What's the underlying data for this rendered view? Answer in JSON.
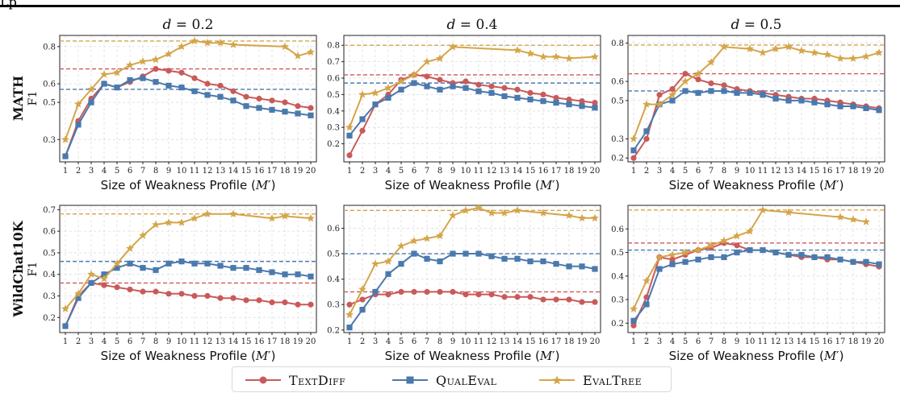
{
  "header_fragment": "Lp",
  "legend": [
    {
      "name": "TextDiff",
      "color": "#c95a5a",
      "marker": "circle"
    },
    {
      "name": "QualEval",
      "color": "#4a79ad",
      "marker": "square"
    },
    {
      "name": "EvalTree",
      "color": "#d4a54a",
      "marker": "star"
    }
  ],
  "row_labels": [
    {
      "title": "MATH",
      "sub": "F1"
    },
    {
      "title": "WildChat10K",
      "sub": "F1"
    }
  ],
  "chart_data": [
    {
      "type": "line",
      "title": "d = 0.2",
      "title_d": "d",
      "title_val": "0.2",
      "xlabel": "Size of Weakness Profile (M′)",
      "xlabel_main": "Size of Weakness Profile (",
      "xlabel_var": "M",
      "xlabel_tail": "′)",
      "x": [
        1,
        2,
        3,
        4,
        5,
        6,
        7,
        8,
        9,
        10,
        11,
        12,
        13,
        14,
        15,
        16,
        17,
        18,
        19,
        20
      ],
      "ylim": [
        0.18,
        0.86
      ],
      "yticks": [
        0.3,
        0.5,
        0.6,
        0.8
      ],
      "grid": true,
      "baselines": {
        "TextDiff": 0.68,
        "QualEval": 0.57,
        "EvalTree": 0.83
      },
      "series": [
        {
          "name": "TextDiff",
          "values": [
            0.21,
            0.4,
            0.52,
            0.6,
            0.58,
            0.61,
            0.64,
            0.68,
            0.67,
            0.66,
            0.63,
            0.6,
            0.59,
            0.56,
            0.53,
            0.52,
            0.51,
            0.5,
            0.48,
            0.47
          ]
        },
        {
          "name": "QualEval",
          "values": [
            0.21,
            0.38,
            0.5,
            0.6,
            0.58,
            0.62,
            0.63,
            0.61,
            0.59,
            0.58,
            0.56,
            0.54,
            0.53,
            0.51,
            0.48,
            0.47,
            0.46,
            0.45,
            0.44,
            0.43
          ]
        },
        {
          "name": "EvalTree",
          "values": [
            0.3,
            0.49,
            0.57,
            0.65,
            0.66,
            0.7,
            0.72,
            0.73,
            0.76,
            0.8,
            0.83,
            0.82,
            0.82,
            0.81,
            null,
            null,
            null,
            0.8,
            0.75,
            0.77
          ]
        }
      ]
    },
    {
      "type": "line",
      "title": "d = 0.4",
      "title_d": "d",
      "title_val": "0.4",
      "xlabel": "Size of Weakness Profile (M′)",
      "xlabel_main": "Size of Weakness Profile (",
      "xlabel_var": "M",
      "xlabel_tail": "′)",
      "x": [
        1,
        2,
        3,
        4,
        5,
        6,
        7,
        8,
        9,
        10,
        11,
        12,
        13,
        14,
        15,
        16,
        17,
        18,
        19,
        20
      ],
      "ylim": [
        0.09,
        0.86
      ],
      "yticks": [
        0.2,
        0.3,
        0.4,
        0.5,
        0.6,
        0.7,
        0.8
      ],
      "grid": true,
      "baselines": {
        "TextDiff": 0.62,
        "QualEval": 0.57,
        "EvalTree": 0.8
      },
      "series": [
        {
          "name": "TextDiff",
          "values": [
            0.13,
            0.28,
            0.44,
            0.5,
            0.59,
            0.62,
            0.61,
            0.59,
            0.57,
            0.58,
            0.56,
            0.55,
            0.54,
            0.53,
            0.51,
            0.5,
            0.48,
            0.47,
            0.46,
            0.45
          ]
        },
        {
          "name": "QualEval",
          "values": [
            0.25,
            0.35,
            0.44,
            0.48,
            0.53,
            0.57,
            0.55,
            0.53,
            0.55,
            0.54,
            0.52,
            0.51,
            0.49,
            0.48,
            0.47,
            0.46,
            0.45,
            0.44,
            0.43,
            0.42
          ]
        },
        {
          "name": "EvalTree",
          "values": [
            0.3,
            0.5,
            0.51,
            0.54,
            0.58,
            0.62,
            0.7,
            0.72,
            0.79,
            null,
            null,
            null,
            null,
            0.77,
            0.75,
            0.73,
            0.73,
            0.72,
            null,
            0.73
          ]
        }
      ]
    },
    {
      "type": "line",
      "title": "d = 0.5",
      "title_d": "d",
      "title_val": "0.5",
      "xlabel": "Size of Weakness Profile (M′)",
      "xlabel_main": "Size of Weakness Profile (",
      "xlabel_var": "M",
      "xlabel_tail": "′)",
      "x": [
        1,
        2,
        3,
        4,
        5,
        6,
        7,
        8,
        9,
        10,
        11,
        12,
        13,
        14,
        15,
        16,
        17,
        18,
        19,
        20
      ],
      "ylim": [
        0.18,
        0.84
      ],
      "yticks": [
        0.2,
        0.3,
        0.5,
        0.6,
        0.8
      ],
      "grid": true,
      "baselines": {
        "TextDiff": 0.64,
        "QualEval": 0.55,
        "EvalTree": 0.79
      },
      "series": [
        {
          "name": "TextDiff",
          "values": [
            0.2,
            0.3,
            0.53,
            0.56,
            0.64,
            0.61,
            0.59,
            0.58,
            0.56,
            0.55,
            0.54,
            0.53,
            0.52,
            0.51,
            0.51,
            0.5,
            0.49,
            0.48,
            0.47,
            0.46
          ]
        },
        {
          "name": "QualEval",
          "values": [
            0.24,
            0.34,
            0.48,
            0.5,
            0.55,
            0.54,
            0.55,
            0.55,
            0.54,
            0.54,
            0.53,
            0.51,
            0.5,
            0.5,
            0.49,
            0.48,
            0.47,
            0.47,
            0.46,
            0.45
          ]
        },
        {
          "name": "EvalTree",
          "values": [
            0.3,
            0.48,
            0.48,
            0.53,
            0.6,
            0.64,
            0.7,
            0.78,
            null,
            0.77,
            0.75,
            0.77,
            0.78,
            0.76,
            0.75,
            0.74,
            0.72,
            0.72,
            0.73,
            0.75
          ]
        }
      ]
    },
    {
      "type": "line",
      "title": "",
      "title_d": "",
      "title_val": "",
      "xlabel": "Size of Weakness Profile (M′)",
      "xlabel_main": "Size of Weakness Profile (",
      "xlabel_var": "M",
      "xlabel_tail": "′)",
      "x": [
        1,
        2,
        3,
        4,
        5,
        6,
        7,
        8,
        9,
        10,
        11,
        12,
        13,
        14,
        15,
        16,
        17,
        18,
        19,
        20
      ],
      "ylim": [
        0.13,
        0.72
      ],
      "yticks": [
        0.2,
        0.3,
        0.4,
        0.5,
        0.6,
        0.7
      ],
      "grid": true,
      "baselines": {
        "TextDiff": 0.36,
        "QualEval": 0.46,
        "EvalTree": 0.68
      },
      "series": [
        {
          "name": "TextDiff",
          "values": [
            0.16,
            0.3,
            0.36,
            0.35,
            0.34,
            0.33,
            0.32,
            0.32,
            0.31,
            0.31,
            0.3,
            0.3,
            0.29,
            0.29,
            0.28,
            0.28,
            0.27,
            0.27,
            0.26,
            0.26
          ]
        },
        {
          "name": "QualEval",
          "values": [
            0.16,
            0.29,
            0.36,
            0.4,
            0.43,
            0.45,
            0.43,
            0.42,
            0.45,
            0.46,
            0.45,
            0.45,
            0.44,
            0.43,
            0.43,
            0.42,
            0.41,
            0.4,
            0.4,
            0.39
          ]
        },
        {
          "name": "EvalTree",
          "values": [
            0.24,
            0.31,
            0.4,
            0.38,
            0.45,
            0.52,
            0.58,
            0.63,
            0.64,
            0.64,
            0.66,
            0.68,
            null,
            0.68,
            null,
            null,
            0.66,
            0.67,
            null,
            0.66
          ]
        }
      ]
    },
    {
      "type": "line",
      "title": "",
      "title_d": "",
      "title_val": "",
      "xlabel": "Size of Weakness Profile (M′)",
      "xlabel_main": "Size of Weakness Profile (",
      "xlabel_var": "M",
      "xlabel_tail": "′)",
      "x": [
        1,
        2,
        3,
        4,
        5,
        6,
        7,
        8,
        9,
        10,
        11,
        12,
        13,
        14,
        15,
        16,
        17,
        18,
        19,
        20
      ],
      "ylim": [
        0.19,
        0.69
      ],
      "yticks": [
        0.2,
        0.3,
        0.4,
        0.5,
        0.6
      ],
      "grid": true,
      "baselines": {
        "TextDiff": 0.35,
        "QualEval": 0.5,
        "EvalTree": 0.67
      },
      "series": [
        {
          "name": "TextDiff",
          "values": [
            0.3,
            0.32,
            0.34,
            0.34,
            0.35,
            0.35,
            0.35,
            0.35,
            0.35,
            0.34,
            0.34,
            0.34,
            0.33,
            0.33,
            0.33,
            0.32,
            0.32,
            0.32,
            0.31,
            0.31
          ]
        },
        {
          "name": "QualEval",
          "values": [
            0.21,
            0.28,
            0.35,
            0.42,
            0.46,
            0.5,
            0.48,
            0.47,
            0.5,
            0.5,
            0.5,
            0.49,
            0.48,
            0.48,
            0.47,
            0.47,
            0.46,
            0.45,
            0.45,
            0.44
          ]
        },
        {
          "name": "EvalTree",
          "values": [
            0.26,
            0.36,
            0.46,
            0.47,
            0.53,
            0.55,
            0.56,
            0.57,
            0.65,
            0.67,
            0.68,
            0.66,
            0.66,
            0.67,
            null,
            0.66,
            null,
            0.65,
            0.64,
            0.64
          ]
        }
      ]
    },
    {
      "type": "line",
      "title": "",
      "title_d": "",
      "title_val": "",
      "xlabel": "Size of Weakness Profile (M′)",
      "xlabel_main": "Size of Weakness Profile (",
      "xlabel_var": "M",
      "xlabel_tail": "′)",
      "x": [
        1,
        2,
        3,
        4,
        5,
        6,
        7,
        8,
        9,
        10,
        11,
        12,
        13,
        14,
        15,
        16,
        17,
        18,
        19,
        20
      ],
      "ylim": [
        0.16,
        0.7
      ],
      "yticks": [
        0.2,
        0.3,
        0.4,
        0.5,
        0.6
      ],
      "grid": true,
      "baselines": {
        "TextDiff": 0.54,
        "QualEval": 0.51,
        "EvalTree": 0.68
      },
      "series": [
        {
          "name": "TextDiff",
          "values": [
            0.19,
            0.31,
            0.48,
            0.47,
            0.49,
            0.51,
            0.52,
            0.54,
            0.53,
            0.51,
            0.51,
            0.5,
            0.49,
            0.48,
            0.48,
            0.47,
            0.47,
            0.46,
            0.45,
            0.44
          ]
        },
        {
          "name": "QualEval",
          "values": [
            0.21,
            0.28,
            0.43,
            0.45,
            0.46,
            0.47,
            0.48,
            0.48,
            0.5,
            0.51,
            0.51,
            0.5,
            0.49,
            0.49,
            0.48,
            0.48,
            0.47,
            0.46,
            0.46,
            0.45
          ]
        },
        {
          "name": "EvalTree",
          "values": [
            0.26,
            0.38,
            0.48,
            0.49,
            0.5,
            0.51,
            0.53,
            0.55,
            0.57,
            0.59,
            0.68,
            null,
            0.67,
            null,
            null,
            null,
            0.65,
            0.64,
            0.63,
            null
          ]
        }
      ]
    }
  ]
}
